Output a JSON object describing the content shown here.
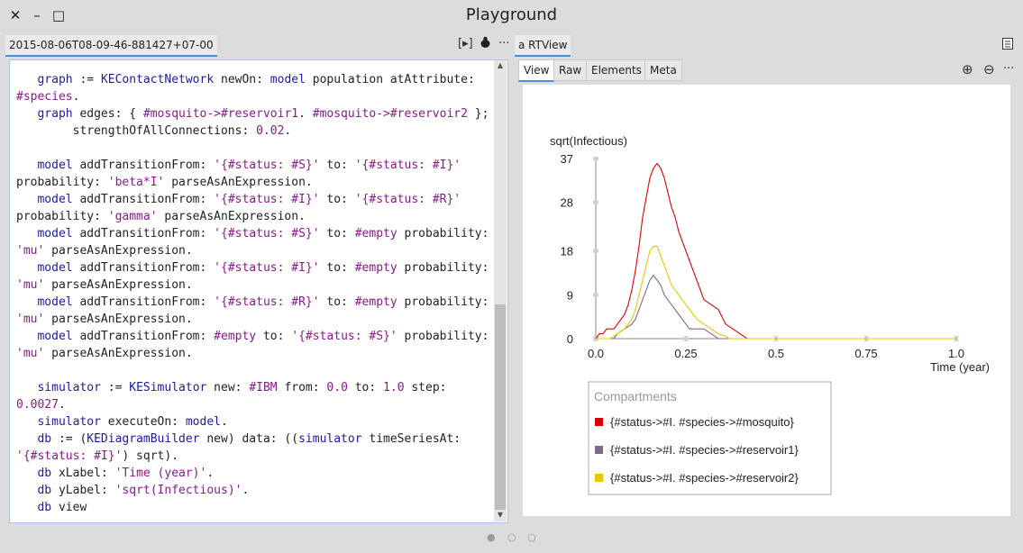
{
  "window": {
    "title": "Playground",
    "close_glyph": "✕",
    "minimize_glyph": "–",
    "maximize_glyph": "□"
  },
  "left_tab": {
    "label": "2015-08-06T08-09-46-881427+07-00",
    "run_icon": "run-icon",
    "run_glyph": "[▸]",
    "debug_icon": "bug-icon",
    "menu_glyph": "···"
  },
  "right_tab": {
    "label": "a RTView",
    "doc_icon": "document-icon",
    "subtabs": [
      "View",
      "Raw",
      "Elements",
      "Meta"
    ],
    "zoom_in_glyph": "⊕",
    "zoom_out_glyph": "⊖",
    "menu_glyph": "···"
  },
  "code_lines": [
    [
      [
        "",
        "   "
      ],
      [
        "var",
        "graph"
      ],
      [
        "",
        " := "
      ],
      [
        "cls",
        "KEContactNetwork"
      ],
      [
        "",
        " newOn: "
      ],
      [
        "var",
        "model"
      ],
      [
        "",
        " population atAttribute:"
      ]
    ],
    [
      [
        "sym",
        "#species"
      ],
      [
        "",
        "."
      ]
    ],
    [
      [
        "",
        "   "
      ],
      [
        "var",
        "graph"
      ],
      [
        "",
        " edges: { "
      ],
      [
        "sym",
        "#mosquito->#reservoir1"
      ],
      [
        "",
        ". "
      ],
      [
        "sym",
        "#mosquito->#reservoir2"
      ],
      [
        "",
        " };"
      ]
    ],
    [
      [
        "",
        "        strengthOfAllConnections: "
      ],
      [
        "num",
        "0.02"
      ],
      [
        "",
        "."
      ]
    ],
    [
      [
        "",
        ""
      ]
    ],
    [
      [
        "",
        "   "
      ],
      [
        "var",
        "model"
      ],
      [
        "",
        " addTransitionFrom: "
      ],
      [
        "str",
        "'{#status: #S}'"
      ],
      [
        "",
        " to: "
      ],
      [
        "str",
        "'{#status: #I}'"
      ]
    ],
    [
      [
        "",
        "probability: "
      ],
      [
        "str",
        "'beta*I'"
      ],
      [
        "",
        " parseAsAnExpression."
      ]
    ],
    [
      [
        "",
        "   "
      ],
      [
        "var",
        "model"
      ],
      [
        "",
        " addTransitionFrom: "
      ],
      [
        "str",
        "'{#status: #I}'"
      ],
      [
        "",
        " to: "
      ],
      [
        "str",
        "'{#status: #R}'"
      ]
    ],
    [
      [
        "",
        "probability: "
      ],
      [
        "str",
        "'gamma'"
      ],
      [
        "",
        " parseAsAnExpression."
      ]
    ],
    [
      [
        "",
        "   "
      ],
      [
        "var",
        "model"
      ],
      [
        "",
        " addTransitionFrom: "
      ],
      [
        "str",
        "'{#status: #S}'"
      ],
      [
        "",
        " to: "
      ],
      [
        "sym",
        "#empty"
      ],
      [
        "",
        " probability:"
      ]
    ],
    [
      [
        "str",
        "'mu'"
      ],
      [
        "",
        " parseAsAnExpression."
      ]
    ],
    [
      [
        "",
        "   "
      ],
      [
        "var",
        "model"
      ],
      [
        "",
        " addTransitionFrom: "
      ],
      [
        "str",
        "'{#status: #I}'"
      ],
      [
        "",
        " to: "
      ],
      [
        "sym",
        "#empty"
      ],
      [
        "",
        " probability:"
      ]
    ],
    [
      [
        "str",
        "'mu'"
      ],
      [
        "",
        " parseAsAnExpression."
      ]
    ],
    [
      [
        "",
        "   "
      ],
      [
        "var",
        "model"
      ],
      [
        "",
        " addTransitionFrom: "
      ],
      [
        "str",
        "'{#status: #R}'"
      ],
      [
        "",
        " to: "
      ],
      [
        "sym",
        "#empty"
      ],
      [
        "",
        " probability:"
      ]
    ],
    [
      [
        "str",
        "'mu'"
      ],
      [
        "",
        " parseAsAnExpression."
      ]
    ],
    [
      [
        "",
        "   "
      ],
      [
        "var",
        "model"
      ],
      [
        "",
        " addTransitionFrom: "
      ],
      [
        "sym",
        "#empty"
      ],
      [
        "",
        " to: "
      ],
      [
        "str",
        "'{#status: #S}'"
      ],
      [
        "",
        " probability:"
      ]
    ],
    [
      [
        "str",
        "'mu'"
      ],
      [
        "",
        " parseAsAnExpression."
      ]
    ],
    [
      [
        "",
        ""
      ]
    ],
    [
      [
        "",
        "   "
      ],
      [
        "var",
        "simulator"
      ],
      [
        "",
        " := "
      ],
      [
        "cls",
        "KESimulator"
      ],
      [
        "",
        " new: "
      ],
      [
        "sym",
        "#IBM"
      ],
      [
        "",
        " from: "
      ],
      [
        "num",
        "0.0"
      ],
      [
        "",
        " to: "
      ],
      [
        "num",
        "1.0"
      ],
      [
        "",
        " step:"
      ]
    ],
    [
      [
        "num",
        "0.0027"
      ],
      [
        "",
        "."
      ]
    ],
    [
      [
        "",
        "   "
      ],
      [
        "var",
        "simulator"
      ],
      [
        "",
        " executeOn: "
      ],
      [
        "var",
        "model"
      ],
      [
        "",
        "."
      ]
    ],
    [
      [
        "",
        "   "
      ],
      [
        "var",
        "db"
      ],
      [
        "",
        " := ("
      ],
      [
        "cls",
        "KEDiagramBuilder"
      ],
      [
        "",
        " new) data: (("
      ],
      [
        "var",
        "simulator"
      ],
      [
        "",
        " timeSeriesAt:"
      ]
    ],
    [
      [
        "str",
        "'{#status: #I}'"
      ],
      [
        "",
        ") sqrt)."
      ]
    ],
    [
      [
        "",
        "   "
      ],
      [
        "var",
        "db"
      ],
      [
        "",
        " xLabel: "
      ],
      [
        "str",
        "'Time (year)'"
      ],
      [
        "",
        "."
      ]
    ],
    [
      [
        "",
        "   "
      ],
      [
        "var",
        "db"
      ],
      [
        "",
        " yLabel: "
      ],
      [
        "str",
        "'sqrt(Infectious)'"
      ],
      [
        "",
        "."
      ]
    ],
    [
      [
        "",
        "   "
      ],
      [
        "var",
        "db"
      ],
      [
        "",
        " view"
      ]
    ]
  ],
  "chart_data": {
    "type": "line",
    "title": "",
    "xlabel": "Time (year)",
    "ylabel": "sqrt(Infectious)",
    "xlim": [
      0,
      1.0
    ],
    "ylim": [
      0,
      37
    ],
    "xticks": [
      "0.0",
      "0.25",
      "0.5",
      "0.75",
      "1.0"
    ],
    "yticks": [
      "0",
      "9",
      "18",
      "28",
      "37"
    ],
    "grid": false,
    "legend_title": "Compartments",
    "legend_position": "bottom-left",
    "series": [
      {
        "name": "{#status->#I. #species->#mosquito}",
        "color": "#e00000",
        "x": [
          0.0,
          0.01,
          0.02,
          0.03,
          0.05,
          0.07,
          0.08,
          0.09,
          0.1,
          0.11,
          0.12,
          0.13,
          0.14,
          0.15,
          0.16,
          0.17,
          0.18,
          0.19,
          0.2,
          0.21,
          0.22,
          0.23,
          0.24,
          0.25,
          0.26,
          0.27,
          0.28,
          0.29,
          0.3,
          0.32,
          0.34,
          0.36,
          0.38,
          0.4,
          0.41,
          0.42,
          0.5,
          0.75,
          1.0
        ],
        "values": [
          0,
          1,
          1,
          2,
          2,
          4,
          5,
          7,
          10,
          14,
          19,
          25,
          29,
          33,
          35,
          36,
          35,
          33,
          30,
          27,
          25,
          22,
          20,
          18,
          16,
          14,
          12,
          10,
          8,
          7,
          6,
          3,
          2,
          1,
          0.5,
          0,
          0,
          0,
          0
        ]
      },
      {
        "name": "{#status->#I. #species->#reservoir1}",
        "color": "#806888",
        "x": [
          0.0,
          0.05,
          0.06,
          0.08,
          0.1,
          0.11,
          0.12,
          0.13,
          0.14,
          0.15,
          0.16,
          0.17,
          0.18,
          0.19,
          0.2,
          0.21,
          0.22,
          0.23,
          0.24,
          0.25,
          0.26,
          0.28,
          0.3,
          0.32,
          0.33,
          0.34,
          0.35,
          0.5,
          0.75,
          1.0
        ],
        "values": [
          0,
          0,
          1,
          2,
          3,
          4,
          6,
          8,
          10,
          12,
          13,
          12,
          11,
          9,
          8,
          7,
          6,
          5,
          4,
          3,
          2,
          2,
          2,
          1,
          0.5,
          0,
          0,
          0,
          0,
          0
        ]
      },
      {
        "name": "{#status->#I. #species->#reservoir2}",
        "color": "#e8c800",
        "x": [
          0.0,
          0.04,
          0.06,
          0.08,
          0.1,
          0.11,
          0.12,
          0.13,
          0.14,
          0.15,
          0.16,
          0.17,
          0.18,
          0.19,
          0.2,
          0.21,
          0.22,
          0.23,
          0.24,
          0.25,
          0.26,
          0.27,
          0.28,
          0.3,
          0.32,
          0.34,
          0.36,
          0.37,
          0.38,
          0.5,
          0.75,
          1.0
        ],
        "values": [
          0,
          0,
          1,
          2,
          4,
          6,
          9,
          12,
          15,
          18,
          19,
          19,
          17,
          15,
          13,
          11,
          10,
          9,
          8,
          7,
          6,
          5,
          4,
          3,
          2,
          1,
          0.5,
          0,
          0,
          0,
          0,
          0
        ]
      }
    ]
  },
  "pager": [
    "●",
    "○",
    "○"
  ]
}
